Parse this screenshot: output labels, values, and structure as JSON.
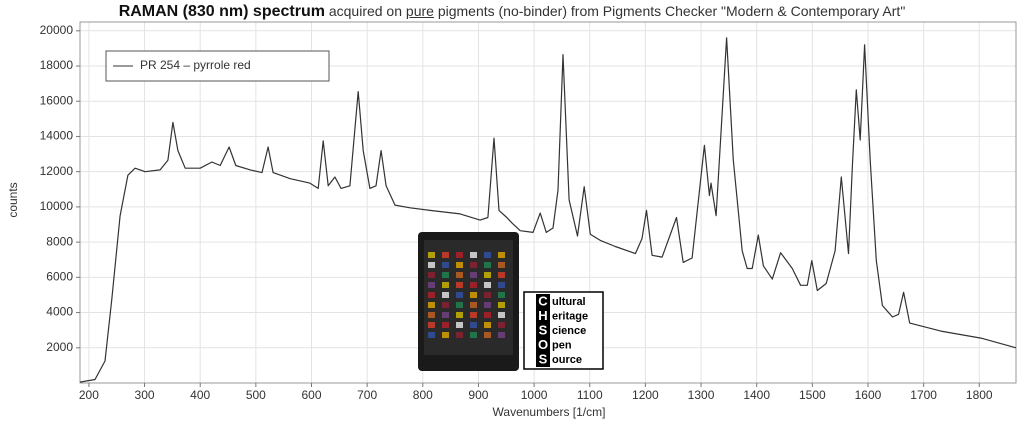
{
  "chart_data": {
    "type": "line",
    "title": {
      "main": "RAMAN (830 nm) spectrum",
      "pre": "acquired on",
      "underlined": "pure",
      "post": "pigments (no-binder) from Pigments Checker \"Modern & Contemporary Art\""
    },
    "x_label": "Wavenumbers [1/cm]",
    "y_label": "counts",
    "x": [
      184,
      211,
      229,
      241,
      256,
      270,
      283,
      301,
      328,
      342,
      351,
      360,
      373,
      400,
      421,
      436,
      452,
      464,
      490,
      511,
      522,
      531,
      562,
      597,
      612,
      621,
      630,
      642,
      653,
      669,
      684,
      693,
      705,
      716,
      725,
      734,
      750,
      777,
      813,
      867,
      903,
      917,
      928,
      937,
      951,
      960,
      975,
      998,
      1011,
      1022,
      1034,
      1043,
      1052,
      1063,
      1078,
      1090,
      1101,
      1119,
      1146,
      1182,
      1194,
      1202,
      1212,
      1230,
      1256,
      1268,
      1284,
      1306,
      1315,
      1318,
      1327,
      1346,
      1358,
      1374,
      1383,
      1392,
      1403,
      1412,
      1428,
      1443,
      1464,
      1479,
      1491,
      1499,
      1509,
      1525,
      1541,
      1552,
      1565,
      1572,
      1579,
      1586,
      1594,
      1604,
      1615,
      1626,
      1644,
      1655,
      1664,
      1675,
      1731,
      1803,
      1866
    ],
    "series": [
      {
        "name": "PR 254 – pyrrole red",
        "color": "#333333",
        "values": [
          50,
          200,
          1250,
          4700,
          9500,
          11800,
          12200,
          12000,
          12100,
          12650,
          14800,
          13200,
          12200,
          12200,
          12550,
          12350,
          13400,
          12350,
          12100,
          11950,
          13400,
          11950,
          11600,
          11350,
          11050,
          13750,
          11200,
          11700,
          11050,
          11200,
          16550,
          13200,
          11050,
          11200,
          13200,
          11200,
          10100,
          9950,
          9800,
          9600,
          9250,
          9400,
          13900,
          9800,
          9400,
          9100,
          8650,
          8550,
          9650,
          8550,
          8800,
          10950,
          18650,
          10400,
          8350,
          11150,
          8450,
          8100,
          7750,
          7350,
          8200,
          9800,
          7250,
          7150,
          9400,
          6850,
          7100,
          13500,
          10650,
          11350,
          9500,
          19600,
          12650,
          7500,
          6500,
          6500,
          8400,
          6650,
          5900,
          7400,
          6500,
          5550,
          5550,
          6950,
          5250,
          5650,
          7500,
          11700,
          7350,
          12350,
          16650,
          13800,
          19200,
          12650,
          6950,
          4400,
          3750,
          3900,
          5150,
          3400,
          2950,
          2550,
          2000
        ]
      }
    ],
    "xlim": [
      184,
      1866
    ],
    "ylim": [
      0,
      20500
    ],
    "xticks": [
      200,
      300,
      400,
      500,
      600,
      700,
      800,
      900,
      1000,
      1100,
      1200,
      1300,
      1400,
      1500,
      1600,
      1700,
      1800
    ],
    "yticks": [
      2000,
      4000,
      6000,
      8000,
      10000,
      12000,
      14000,
      16000,
      18000,
      20000
    ],
    "grid": true,
    "legend": "top-left"
  },
  "logo": {
    "letters": [
      "C",
      "H",
      "S",
      "O",
      "S"
    ],
    "words": [
      "ultural",
      "eritage",
      "cience",
      "pen",
      "ource"
    ]
  }
}
